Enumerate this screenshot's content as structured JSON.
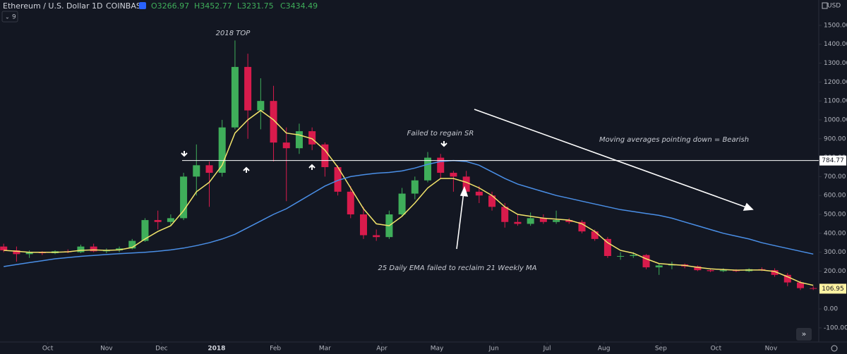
{
  "header": {
    "symbol": "Ethereum / U.S. Dollar",
    "interval": "1D",
    "exchange": "COINBASE",
    "ohlc": [
      "O3266.97",
      "H3452.77",
      "L3231.75",
      "C3434.49"
    ],
    "currency": "USD",
    "indicators": "9"
  },
  "chart_data": {
    "type": "candlestick",
    "x": [
      2,
      9,
      16,
      23,
      30,
      37,
      44,
      51,
      58,
      65,
      72,
      79,
      86,
      93,
      100,
      107,
      114,
      121,
      128,
      135,
      142,
      149,
      156,
      163,
      170,
      177,
      184,
      191,
      198,
      205,
      212,
      219,
      226,
      233,
      240,
      247,
      254,
      261,
      268,
      275,
      282,
      289,
      296,
      303,
      310,
      317,
      324,
      331,
      338,
      345,
      352,
      359,
      366,
      373,
      380,
      387,
      394,
      401,
      408,
      415,
      422,
      429,
      436,
      443
    ],
    "open": [
      330,
      310,
      290,
      300,
      295,
      305,
      300,
      330,
      305,
      310,
      320,
      360,
      470,
      460,
      480,
      700,
      760,
      720,
      960,
      1280,
      1050,
      1100,
      880,
      850,
      940,
      870,
      750,
      620,
      500,
      390,
      380,
      500,
      610,
      680,
      800,
      720,
      700,
      620,
      600,
      540,
      460,
      450,
      480,
      460,
      470,
      460,
      410,
      370,
      280,
      280,
      285,
      220,
      230,
      235,
      225,
      205,
      200,
      205,
      200,
      210,
      205,
      180,
      140,
      110
    ],
    "high": [
      345,
      330,
      310,
      305,
      310,
      315,
      340,
      345,
      320,
      330,
      370,
      480,
      520,
      500,
      720,
      870,
      780,
      1000,
      1420,
      1350,
      1220,
      1180,
      960,
      980,
      960,
      880,
      760,
      650,
      540,
      420,
      520,
      640,
      700,
      830,
      820,
      730,
      730,
      650,
      620,
      560,
      500,
      510,
      500,
      520,
      480,
      470,
      420,
      380,
      300,
      300,
      290,
      240,
      250,
      240,
      230,
      215,
      215,
      210,
      215,
      220,
      215,
      190,
      150,
      120
    ],
    "low": [
      300,
      250,
      270,
      285,
      290,
      295,
      295,
      300,
      295,
      300,
      315,
      355,
      420,
      440,
      470,
      600,
      540,
      700,
      950,
      900,
      950,
      780,
      570,
      820,
      840,
      700,
      600,
      480,
      370,
      360,
      370,
      490,
      580,
      670,
      690,
      620,
      600,
      560,
      520,
      430,
      440,
      440,
      450,
      450,
      450,
      400,
      360,
      270,
      260,
      270,
      210,
      180,
      210,
      215,
      200,
      195,
      195,
      195,
      195,
      200,
      170,
      120,
      100,
      100
    ],
    "close": [
      310,
      290,
      300,
      295,
      305,
      300,
      330,
      305,
      310,
      320,
      360,
      470,
      460,
      480,
      700,
      760,
      720,
      960,
      1280,
      1050,
      1100,
      880,
      850,
      940,
      870,
      750,
      620,
      500,
      390,
      380,
      500,
      610,
      680,
      800,
      720,
      700,
      620,
      600,
      540,
      460,
      450,
      480,
      460,
      470,
      460,
      410,
      370,
      280,
      280,
      285,
      220,
      230,
      235,
      225,
      205,
      200,
      205,
      200,
      210,
      205,
      180,
      140,
      110,
      106.95
    ],
    "up_color": "#3fae5a",
    "down_color": "#d81b4c",
    "lines": [
      {
        "color": "#f2e46b",
        "values": [
          310,
          305,
          300,
          300,
          300,
          302,
          310,
          312,
          310,
          312,
          325,
          370,
          410,
          440,
          520,
          620,
          670,
          760,
          930,
          1000,
          1050,
          1000,
          930,
          920,
          900,
          840,
          750,
          640,
          530,
          450,
          440,
          490,
          560,
          640,
          690,
          690,
          670,
          640,
          600,
          540,
          500,
          490,
          480,
          475,
          470,
          450,
          410,
          350,
          310,
          295,
          265,
          240,
          235,
          230,
          220,
          212,
          208,
          205,
          206,
          206,
          198,
          170,
          140,
          125
        ]
      },
      {
        "color": "#4a8fe7",
        "values": [
          224,
          235,
          245,
          255,
          265,
          272,
          278,
          283,
          288,
          292,
          296,
          300,
          305,
          312,
          322,
          335,
          350,
          370,
          395,
          430,
          465,
          500,
          530,
          570,
          610,
          650,
          680,
          700,
          710,
          718,
          722,
          730,
          745,
          765,
          780,
          785,
          780,
          760,
          725,
          690,
          660,
          640,
          620,
          600,
          585,
          570,
          555,
          540,
          525,
          515,
          505,
          495,
          480,
          460,
          440,
          420,
          400,
          385,
          370,
          350,
          335,
          320,
          305,
          290
        ]
      }
    ],
    "price_line": 784.77,
    "xlim": [
      0,
      446
    ],
    "ylim": [
      -175,
      1634
    ],
    "xticks": [
      {
        "value": 26,
        "label": "Oct"
      },
      {
        "value": 58,
        "label": "Nov"
      },
      {
        "value": 88,
        "label": "Dec"
      },
      {
        "value": 118,
        "label": "2018"
      },
      {
        "value": 150,
        "label": "Feb"
      },
      {
        "value": 177,
        "label": "Mar"
      },
      {
        "value": 208,
        "label": "Apr"
      },
      {
        "value": 238,
        "label": "May"
      },
      {
        "value": 269,
        "label": "Jun"
      },
      {
        "value": 298,
        "label": "Jul"
      },
      {
        "value": 329,
        "label": "Aug"
      },
      {
        "value": 360,
        "label": "Sep"
      },
      {
        "value": 390,
        "label": "Oct"
      },
      {
        "value": 420,
        "label": "Nov"
      }
    ],
    "yticks": [
      {
        "value": -100,
        "label": "-100.00"
      },
      {
        "value": 0,
        "label": "0.00"
      },
      {
        "value": 100,
        "label": "100.00"
      },
      {
        "value": 200,
        "label": "200.00"
      },
      {
        "value": 300,
        "label": "300.00"
      },
      {
        "value": 400,
        "label": "400.00"
      },
      {
        "value": 500,
        "label": "500.00"
      },
      {
        "value": 600,
        "label": "600.00"
      },
      {
        "value": 700,
        "label": "700.00"
      },
      {
        "value": 800,
        "label": "800.00"
      },
      {
        "value": 900,
        "label": "900.00"
      },
      {
        "value": 1000,
        "label": "1000.00"
      },
      {
        "value": 1100,
        "label": "1100.00"
      },
      {
        "value": 1200,
        "label": "1200.00"
      },
      {
        "value": 1300,
        "label": "1300.00"
      },
      {
        "value": 1400,
        "label": "1400.00"
      },
      {
        "value": 1500,
        "label": "1500.00"
      }
    ],
    "grid": false,
    "annotations": [
      "2018 TOP",
      "Failed to regain SR",
      "Moving averages pointing down = Bearish",
      "25 Daily EMA failed to reclaim 21 Weekly MA"
    ]
  }
}
